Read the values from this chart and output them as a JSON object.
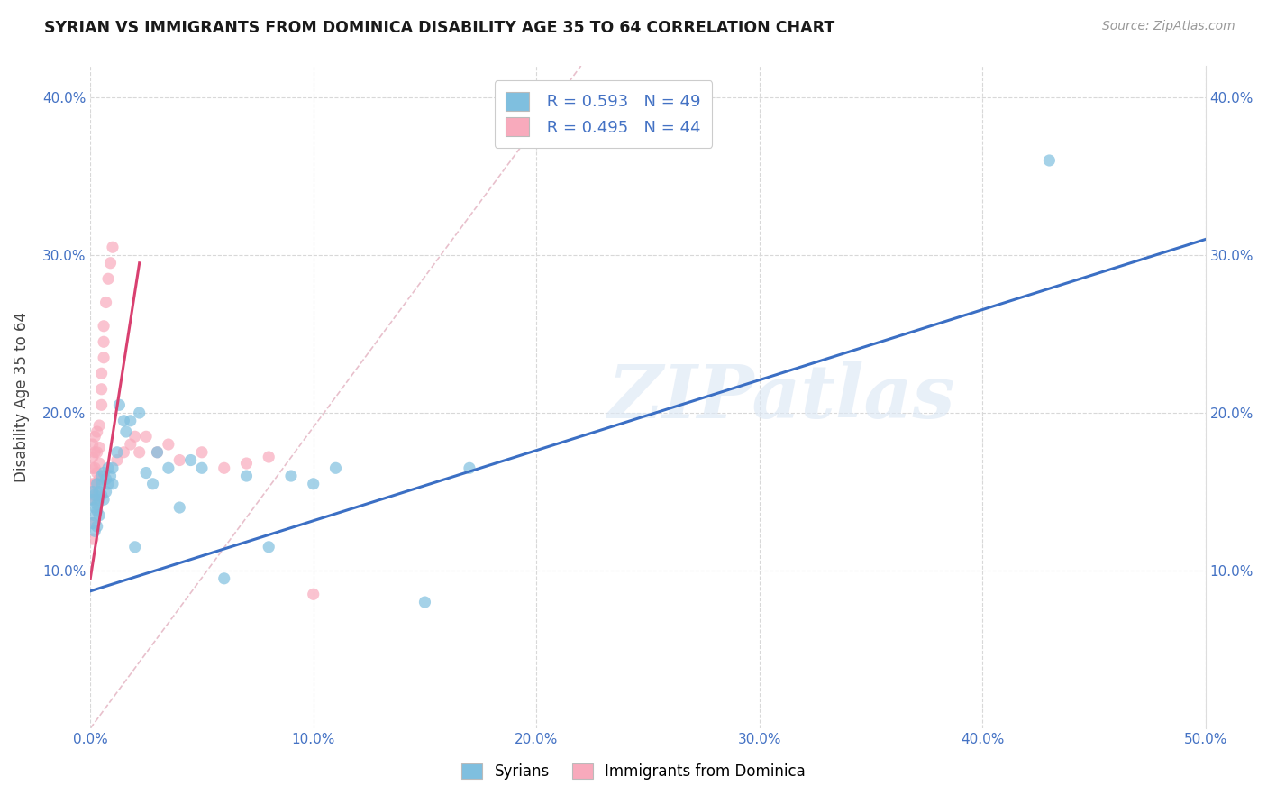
{
  "title": "SYRIAN VS IMMIGRANTS FROM DOMINICA DISABILITY AGE 35 TO 64 CORRELATION CHART",
  "source": "Source: ZipAtlas.com",
  "ylabel": "Disability Age 35 to 64",
  "xlim": [
    0.0,
    0.5
  ],
  "ylim": [
    0.0,
    0.42
  ],
  "xticks": [
    0.0,
    0.1,
    0.2,
    0.3,
    0.4,
    0.5
  ],
  "xticklabels": [
    "0.0%",
    "10.0%",
    "20.0%",
    "30.0%",
    "40.0%",
    "50.0%"
  ],
  "yticks": [
    0.1,
    0.2,
    0.3,
    0.4
  ],
  "yticklabels": [
    "10.0%",
    "20.0%",
    "30.0%",
    "40.0%"
  ],
  "legend_label1": "Syrians",
  "legend_label2": "Immigrants from Dominica",
  "r1": 0.593,
  "n1": 49,
  "r2": 0.495,
  "n2": 44,
  "color1": "#7fbfdf",
  "color2": "#f8aabc",
  "trendline1_color": "#3b6fc4",
  "trendline2_color": "#d94070",
  "diagonal_color": "#e8c0cc",
  "watermark": "ZIPatlas",
  "background_color": "#ffffff",
  "grid_color": "#d8d8d8",
  "syrian_x": [
    0.001,
    0.001,
    0.001,
    0.002,
    0.002,
    0.002,
    0.002,
    0.003,
    0.003,
    0.003,
    0.003,
    0.004,
    0.004,
    0.004,
    0.005,
    0.005,
    0.005,
    0.006,
    0.006,
    0.007,
    0.007,
    0.008,
    0.008,
    0.009,
    0.01,
    0.01,
    0.012,
    0.013,
    0.015,
    0.016,
    0.018,
    0.02,
    0.022,
    0.025,
    0.028,
    0.03,
    0.035,
    0.04,
    0.045,
    0.05,
    0.06,
    0.07,
    0.08,
    0.09,
    0.1,
    0.11,
    0.15,
    0.17,
    0.43
  ],
  "syrian_y": [
    0.15,
    0.145,
    0.13,
    0.135,
    0.14,
    0.148,
    0.125,
    0.155,
    0.142,
    0.138,
    0.128,
    0.145,
    0.15,
    0.135,
    0.16,
    0.155,
    0.148,
    0.162,
    0.145,
    0.158,
    0.15,
    0.165,
    0.155,
    0.16,
    0.165,
    0.155,
    0.175,
    0.205,
    0.195,
    0.188,
    0.195,
    0.115,
    0.2,
    0.162,
    0.155,
    0.175,
    0.165,
    0.14,
    0.17,
    0.165,
    0.095,
    0.16,
    0.115,
    0.16,
    0.155,
    0.165,
    0.08,
    0.165,
    0.36
  ],
  "dominica_x": [
    0.001,
    0.001,
    0.001,
    0.001,
    0.001,
    0.001,
    0.001,
    0.002,
    0.002,
    0.002,
    0.002,
    0.002,
    0.003,
    0.003,
    0.003,
    0.003,
    0.004,
    0.004,
    0.004,
    0.004,
    0.005,
    0.005,
    0.005,
    0.006,
    0.006,
    0.006,
    0.007,
    0.008,
    0.009,
    0.01,
    0.012,
    0.015,
    0.018,
    0.02,
    0.022,
    0.025,
    0.03,
    0.035,
    0.04,
    0.05,
    0.06,
    0.07,
    0.08,
    0.1
  ],
  "dominica_y": [
    0.12,
    0.13,
    0.148,
    0.155,
    0.165,
    0.172,
    0.18,
    0.145,
    0.155,
    0.165,
    0.175,
    0.185,
    0.148,
    0.162,
    0.175,
    0.188,
    0.158,
    0.168,
    0.178,
    0.192,
    0.205,
    0.215,
    0.225,
    0.235,
    0.245,
    0.255,
    0.27,
    0.285,
    0.295,
    0.305,
    0.17,
    0.175,
    0.18,
    0.185,
    0.175,
    0.185,
    0.175,
    0.18,
    0.17,
    0.175,
    0.165,
    0.168,
    0.172,
    0.085
  ],
  "trendline1_x": [
    0.0,
    0.5
  ],
  "trendline1_y": [
    0.087,
    0.31
  ],
  "trendline2_x": [
    0.0,
    0.022
  ],
  "trendline2_y": [
    0.095,
    0.295
  ]
}
